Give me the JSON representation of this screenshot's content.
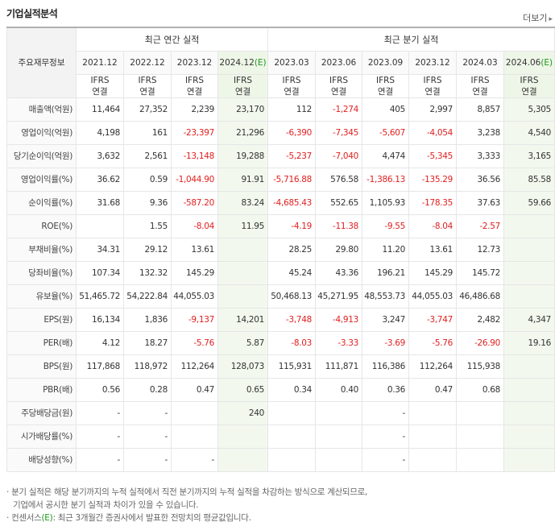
{
  "header": {
    "title": "기업실적분석",
    "more_label": "더보기",
    "more_arrow": "▸"
  },
  "table": {
    "corner_label": "주요재무정보",
    "groups": [
      "최근 연간 실적",
      "최근 분기 실적"
    ],
    "periods": [
      "2021.12",
      "2022.12",
      "2023.12",
      "2024.12",
      "2023.03",
      "2023.06",
      "2023.09",
      "2023.12",
      "2024.03",
      "2024.06"
    ],
    "est_mark": "(E)",
    "basis_top": "IFRS",
    "basis_bottom": "연결",
    "rows": [
      {
        "label": "매출액(억원)",
        "values": [
          "11,464",
          "27,352",
          "2,239",
          "23,170",
          "112",
          "-1,274",
          "405",
          "2,997",
          "8,857",
          "5,305"
        ]
      },
      {
        "label": "영업이익(억원)",
        "values": [
          "4,198",
          "161",
          "-23,397",
          "21,296",
          "-6,390",
          "-7,345",
          "-5,607",
          "-4,054",
          "3,238",
          "4,540"
        ]
      },
      {
        "label": "당기순이익(억원)",
        "values": [
          "3,632",
          "2,561",
          "-13,148",
          "19,288",
          "-5,237",
          "-7,040",
          "4,474",
          "-5,345",
          "3,333",
          "3,165"
        ]
      },
      {
        "label": "영업이익률(%)",
        "values": [
          "36.62",
          "0.59",
          "-1,044.90",
          "91.91",
          "-5,716.88",
          "576.58",
          "-1,386.13",
          "-135.29",
          "36.56",
          "85.58"
        ]
      },
      {
        "label": "순이익률(%)",
        "values": [
          "31.68",
          "9.36",
          "-587.20",
          "83.24",
          "-4,685.43",
          "552.65",
          "1,105.93",
          "-178.35",
          "37.63",
          "59.66"
        ]
      },
      {
        "label": "ROE(%)",
        "values": [
          "",
          "1.55",
          "-8.04",
          "11.95",
          "-4.19",
          "-11.38",
          "-9.55",
          "-8.04",
          "-2.57",
          ""
        ]
      },
      {
        "label": "부채비율(%)",
        "values": [
          "34.31",
          "29.12",
          "13.61",
          "",
          "28.25",
          "29.80",
          "11.20",
          "13.61",
          "12.73",
          ""
        ]
      },
      {
        "label": "당좌비율(%)",
        "values": [
          "107.34",
          "132.32",
          "145.29",
          "",
          "45.24",
          "43.36",
          "196.21",
          "145.29",
          "145.72",
          ""
        ]
      },
      {
        "label": "유보율(%)",
        "values": [
          "51,465.72",
          "54,222.84",
          "44,055.03",
          "",
          "50,468.13",
          "45,271.95",
          "48,553.73",
          "44,055.03",
          "46,486.68",
          ""
        ]
      },
      {
        "label": "EPS(원)",
        "values": [
          "16,134",
          "1,836",
          "-9,137",
          "14,201",
          "-3,748",
          "-4,913",
          "3,247",
          "-3,747",
          "2,482",
          "4,347"
        ]
      },
      {
        "label": "PER(배)",
        "values": [
          "4.12",
          "18.27",
          "-5.76",
          "5.87",
          "-8.03",
          "-3.33",
          "-3.69",
          "-5.76",
          "-26.90",
          "19.16"
        ]
      },
      {
        "label": "BPS(원)",
        "values": [
          "117,868",
          "118,972",
          "112,264",
          "128,073",
          "115,931",
          "111,871",
          "116,386",
          "112,264",
          "115,938",
          ""
        ]
      },
      {
        "label": "PBR(배)",
        "values": [
          "0.56",
          "0.28",
          "0.47",
          "0.65",
          "0.34",
          "0.40",
          "0.36",
          "0.47",
          "0.68",
          ""
        ]
      },
      {
        "label": "주당배당금(원)",
        "values": [
          "-",
          "-",
          "",
          "240",
          "",
          "",
          "-",
          "",
          "",
          ""
        ]
      },
      {
        "label": "시가배당률(%)",
        "values": [
          "-",
          "-",
          "",
          "",
          "",
          "",
          "-",
          "",
          "",
          ""
        ]
      },
      {
        "label": "배당성향(%)",
        "values": [
          "-",
          "-",
          "-",
          "",
          "",
          "",
          "-",
          "",
          "",
          ""
        ]
      }
    ]
  },
  "footnotes": {
    "line1": "· 분기 실적은 해당 분기까지의 누적 실적에서 직전 분기까지의 누적 실적을 차감하는 방식으로 계산되므로,",
    "line2": "기업에서 공시한 분기 실적과 차이가 있을 수 있습니다.",
    "line3_prefix": "· 컨센서스",
    "line3_mark": "(E)",
    "line3_suffix": ": 최근 3개월간 증권사에서 발표한 전망치의 평균값입니다."
  },
  "colors": {
    "negative": "#e12020",
    "basis": "#e05a00",
    "estimate_bg": "#f2f8ee",
    "estimate_mark": "#1a9a1a"
  }
}
